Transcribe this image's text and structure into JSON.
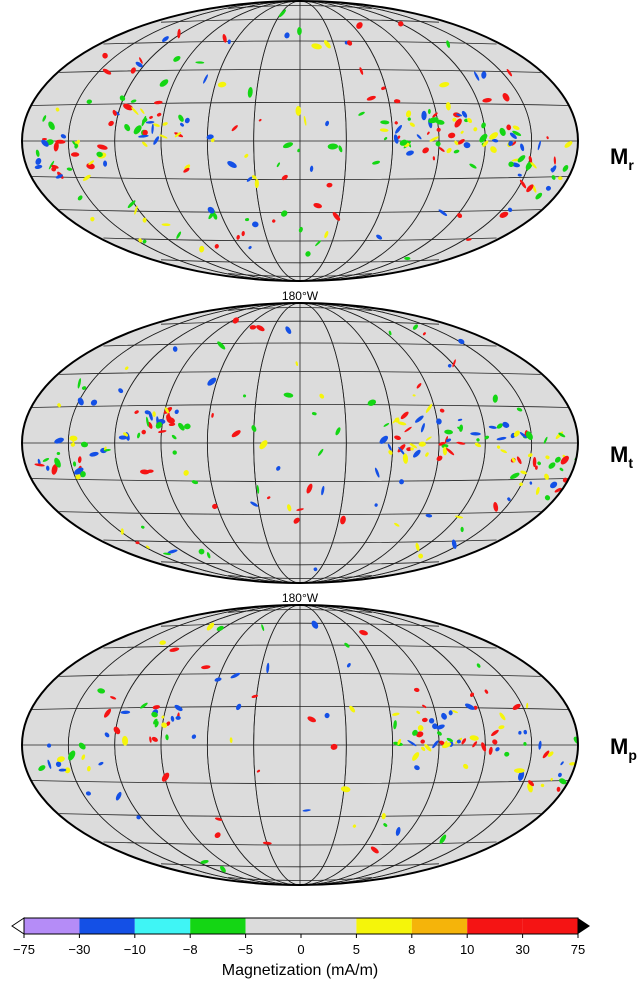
{
  "maps": [
    {
      "name": "M_r",
      "label_main": "M",
      "label_sub": "r"
    },
    {
      "name": "M_t",
      "label_main": "M",
      "label_sub": "t"
    },
    {
      "name": "M_p",
      "label_main": "M",
      "label_sub": "p"
    }
  ],
  "lon_labels": [
    "180°W",
    "180°W"
  ],
  "colorbar": {
    "title": "Magnetization (mA/m)",
    "ticks": [
      "−75",
      "−30",
      "−10",
      "−8",
      "−5",
      "0",
      "5",
      "8",
      "10",
      "30",
      "75"
    ],
    "colors": [
      "#b58cf7",
      "#1450e6",
      "#3ff5f5",
      "#14d614",
      "#dcdcdc",
      "#dcdcdc",
      "#f5f50a",
      "#f5b40a",
      "#f51414",
      "#f51414"
    ],
    "under_color": "#ffffff",
    "over_color": "#000000"
  },
  "colors": {
    "ocean_fill": "#dcdcdc",
    "grid": "#222222",
    "anomaly_red": "#f51414",
    "anomaly_blue": "#1450e6",
    "anomaly_yellow": "#f5f50a",
    "anomaly_green": "#14d614"
  }
}
